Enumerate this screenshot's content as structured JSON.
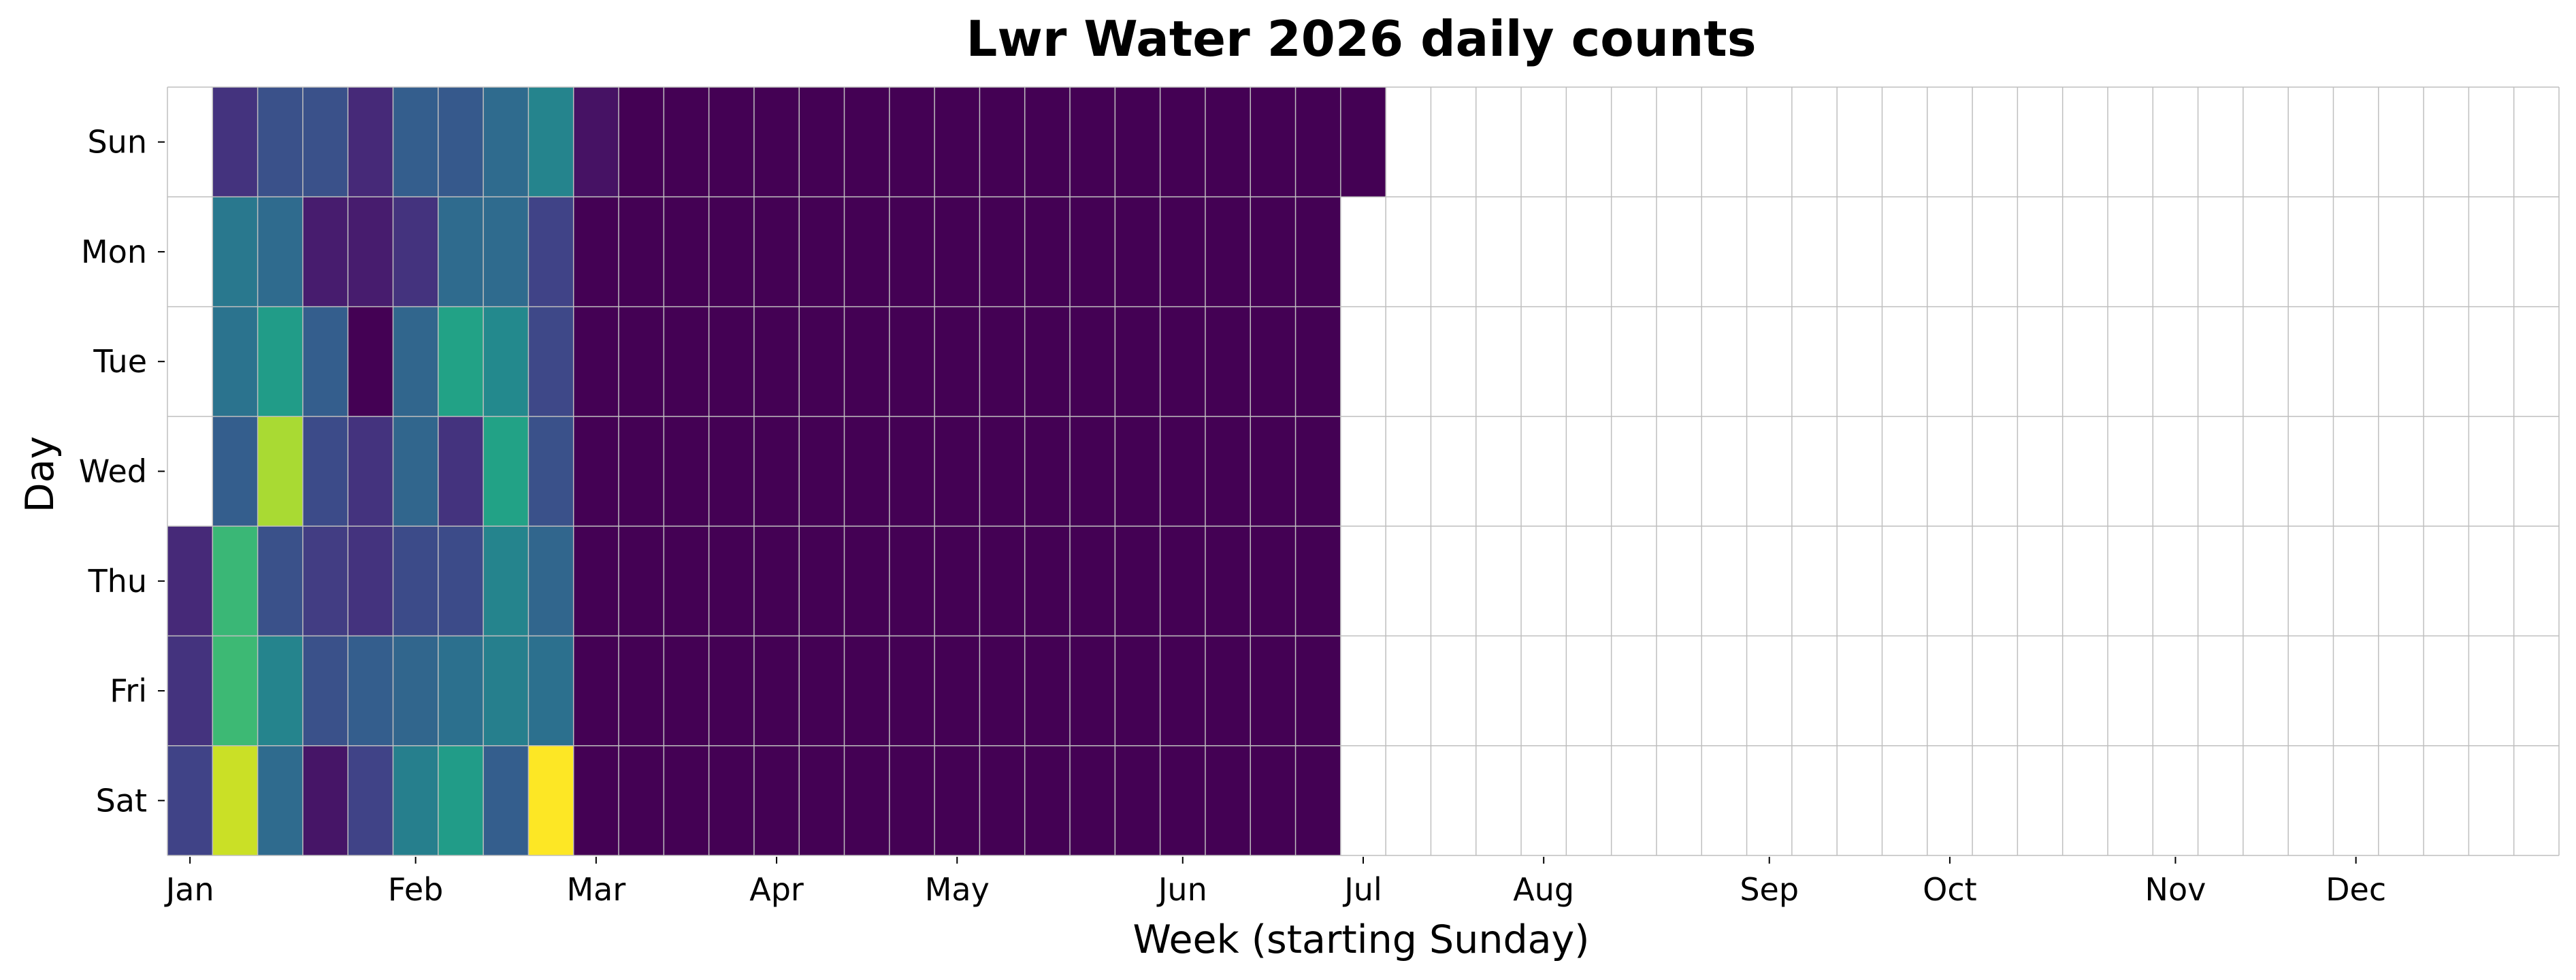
{
  "chart_data": {
    "type": "heatmap",
    "title": "Lwr Water 2026 daily counts",
    "xlabel": "Week (starting Sunday)",
    "ylabel": "Day",
    "days": [
      "Sun",
      "Mon",
      "Tue",
      "Wed",
      "Thu",
      "Fri",
      "Sat"
    ],
    "month_ticks": [
      {
        "label": "Jan",
        "week": 0.5
      },
      {
        "label": "Feb",
        "week": 5.5
      },
      {
        "label": "Mar",
        "week": 9.5
      },
      {
        "label": "Apr",
        "week": 13.5
      },
      {
        "label": "May",
        "week": 17.5
      },
      {
        "label": "Jun",
        "week": 22.5
      },
      {
        "label": "Jul",
        "week": 26.5
      },
      {
        "label": "Aug",
        "week": 30.5
      },
      {
        "label": "Sep",
        "week": 35.5
      },
      {
        "label": "Oct",
        "week": 39.5
      },
      {
        "label": "Nov",
        "week": 44.5
      },
      {
        "label": "Dec",
        "week": 48.5
      }
    ],
    "num_weeks": 53,
    "value_range": [
      0,
      10
    ],
    "colormap": "viridis",
    "grid": true,
    "values": [
      [
        null,
        1.5,
        2.5,
        2.5,
        1.2,
        3.0,
        2.8,
        3.5,
        4.5,
        0.5,
        0,
        0,
        0,
        0,
        0,
        0,
        0,
        0,
        0,
        0,
        0,
        0,
        0,
        0,
        0,
        0,
        0,
        null,
        null,
        null,
        null,
        null,
        null,
        null,
        null,
        null,
        null,
        null,
        null,
        null,
        null,
        null,
        null,
        null,
        null,
        null,
        null,
        null,
        null,
        null,
        null,
        null,
        null
      ],
      [
        null,
        4.0,
        3.5,
        0.8,
        0.8,
        1.5,
        3.5,
        3.5,
        2.0,
        0,
        0,
        0,
        0,
        0,
        0,
        0,
        0,
        0,
        0,
        0,
        0,
        0,
        0,
        0,
        0,
        0,
        null,
        null,
        null,
        null,
        null,
        null,
        null,
        null,
        null,
        null,
        null,
        null,
        null,
        null,
        null,
        null,
        null,
        null,
        null,
        null,
        null,
        null,
        null,
        null,
        null,
        null,
        null
      ],
      [
        null,
        3.8,
        5.5,
        3.0,
        0.0,
        3.3,
        5.8,
        4.7,
        2.2,
        0,
        0,
        0,
        0,
        0,
        0,
        0,
        0,
        0,
        0,
        0,
        0,
        0,
        0,
        0,
        0,
        0,
        null,
        null,
        null,
        null,
        null,
        null,
        null,
        null,
        null,
        null,
        null,
        null,
        null,
        null,
        null,
        null,
        null,
        null,
        null,
        null,
        null,
        null,
        null,
        null,
        null,
        null,
        null
      ],
      [
        null,
        3.0,
        8.7,
        2.3,
        1.5,
        3.3,
        1.5,
        5.8,
        2.5,
        0,
        0,
        0,
        0,
        0,
        0,
        0,
        0,
        0,
        0,
        0,
        0,
        0,
        0,
        0,
        0,
        0,
        null,
        null,
        null,
        null,
        null,
        null,
        null,
        null,
        null,
        null,
        null,
        null,
        null,
        null,
        null,
        null,
        null,
        null,
        null,
        null,
        null,
        null,
        null,
        null,
        null,
        null,
        null
      ],
      [
        1.2,
        6.7,
        2.5,
        1.8,
        1.5,
        2.3,
        2.3,
        4.5,
        3.3,
        0,
        0,
        0,
        0,
        0,
        0,
        0,
        0,
        0,
        0,
        0,
        0,
        0,
        0,
        0,
        0,
        0,
        null,
        null,
        null,
        null,
        null,
        null,
        null,
        null,
        null,
        null,
        null,
        null,
        null,
        null,
        null,
        null,
        null,
        null,
        null,
        null,
        null,
        null,
        null,
        null,
        null,
        null,
        null
      ],
      [
        1.5,
        6.8,
        4.5,
        2.5,
        3.0,
        3.3,
        3.7,
        4.3,
        3.7,
        0,
        0,
        0,
        0,
        0,
        0,
        0,
        0,
        0,
        0,
        0,
        0,
        0,
        0,
        0,
        0,
        0,
        null,
        null,
        null,
        null,
        null,
        null,
        null,
        null,
        null,
        null,
        null,
        null,
        null,
        null,
        null,
        null,
        null,
        null,
        null,
        null,
        null,
        null,
        null,
        null,
        null,
        null,
        null
      ],
      [
        2.0,
        9.2,
        3.5,
        0.6,
        2.0,
        4.3,
        5.5,
        3.0,
        10.0,
        0,
        0,
        0,
        0,
        0,
        0,
        0,
        0,
        0,
        0,
        0,
        0,
        0,
        0,
        0,
        0,
        0,
        null,
        null,
        null,
        null,
        null,
        null,
        null,
        null,
        null,
        null,
        null,
        null,
        null,
        null,
        null,
        null,
        null,
        null,
        null,
        null,
        null,
        null,
        null,
        null,
        null,
        null,
        null
      ]
    ]
  }
}
